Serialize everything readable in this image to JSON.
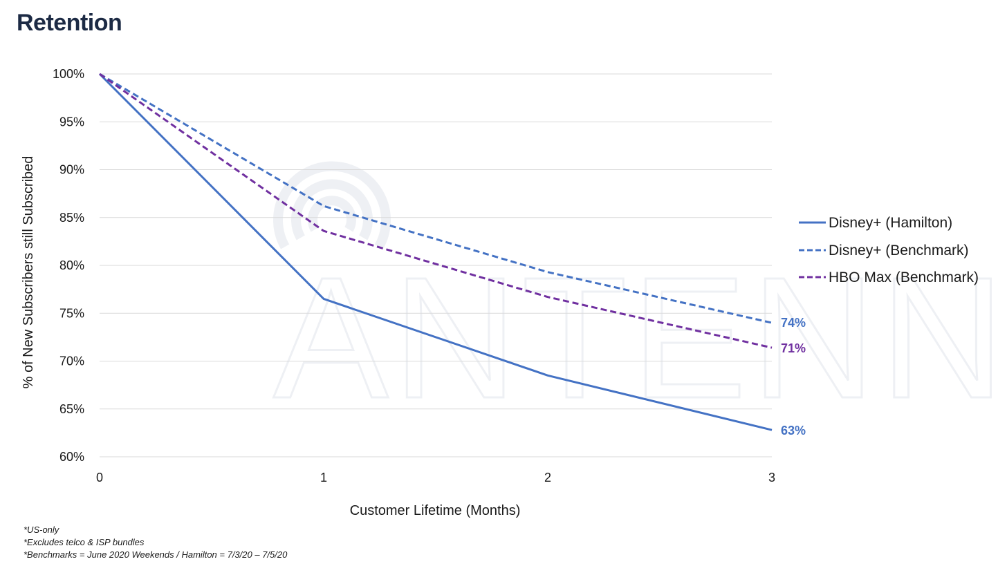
{
  "page": {
    "title": "Retention",
    "watermark": "ANTENNA",
    "footnotes": [
      "*US-only",
      "*Excludes telco & ISP bundles",
      "*Benchmarks = June 2020 Weekends / Hamilton = 7/3/20 – 7/5/20"
    ]
  },
  "colors": {
    "disney_hamilton": "#4472c4",
    "disney_benchmark": "#4472c4",
    "hbo_max": "#7030a0",
    "grid": "#d9d9d9",
    "title": "#1c2a44"
  },
  "chart_data": {
    "type": "line",
    "title": "Retention",
    "xlabel": "Customer Lifetime (Months)",
    "ylabel": "% of New Subscribers still Subscribed",
    "x": [
      0,
      1,
      2,
      3
    ],
    "x_tick_labels": [
      "0",
      "1",
      "2",
      "3"
    ],
    "y_tick_labels": [
      "100%",
      "95%",
      "90%",
      "85%",
      "80%",
      "75%",
      "70%",
      "65%",
      "60%"
    ],
    "y_ticks": [
      100,
      95,
      90,
      85,
      80,
      75,
      70,
      65,
      60
    ],
    "xlim": [
      0,
      3
    ],
    "ylim": [
      60,
      100
    ],
    "grid": "horizontal",
    "legend_position": "right",
    "series": [
      {
        "name": "Disney+ (Hamilton)",
        "values": [
          100,
          76.5,
          68.5,
          62.8
        ],
        "style": "solid",
        "color": "#4472c4",
        "end_label": "63%"
      },
      {
        "name": "Disney+ (Benchmark)",
        "values": [
          100,
          86.2,
          79.3,
          74.0
        ],
        "style": "dashed",
        "color": "#4472c4",
        "end_label": "74%"
      },
      {
        "name": "HBO Max (Benchmark)",
        "values": [
          100,
          83.6,
          76.7,
          71.4
        ],
        "style": "dashed",
        "color": "#7030a0",
        "end_label": "71%"
      }
    ]
  }
}
